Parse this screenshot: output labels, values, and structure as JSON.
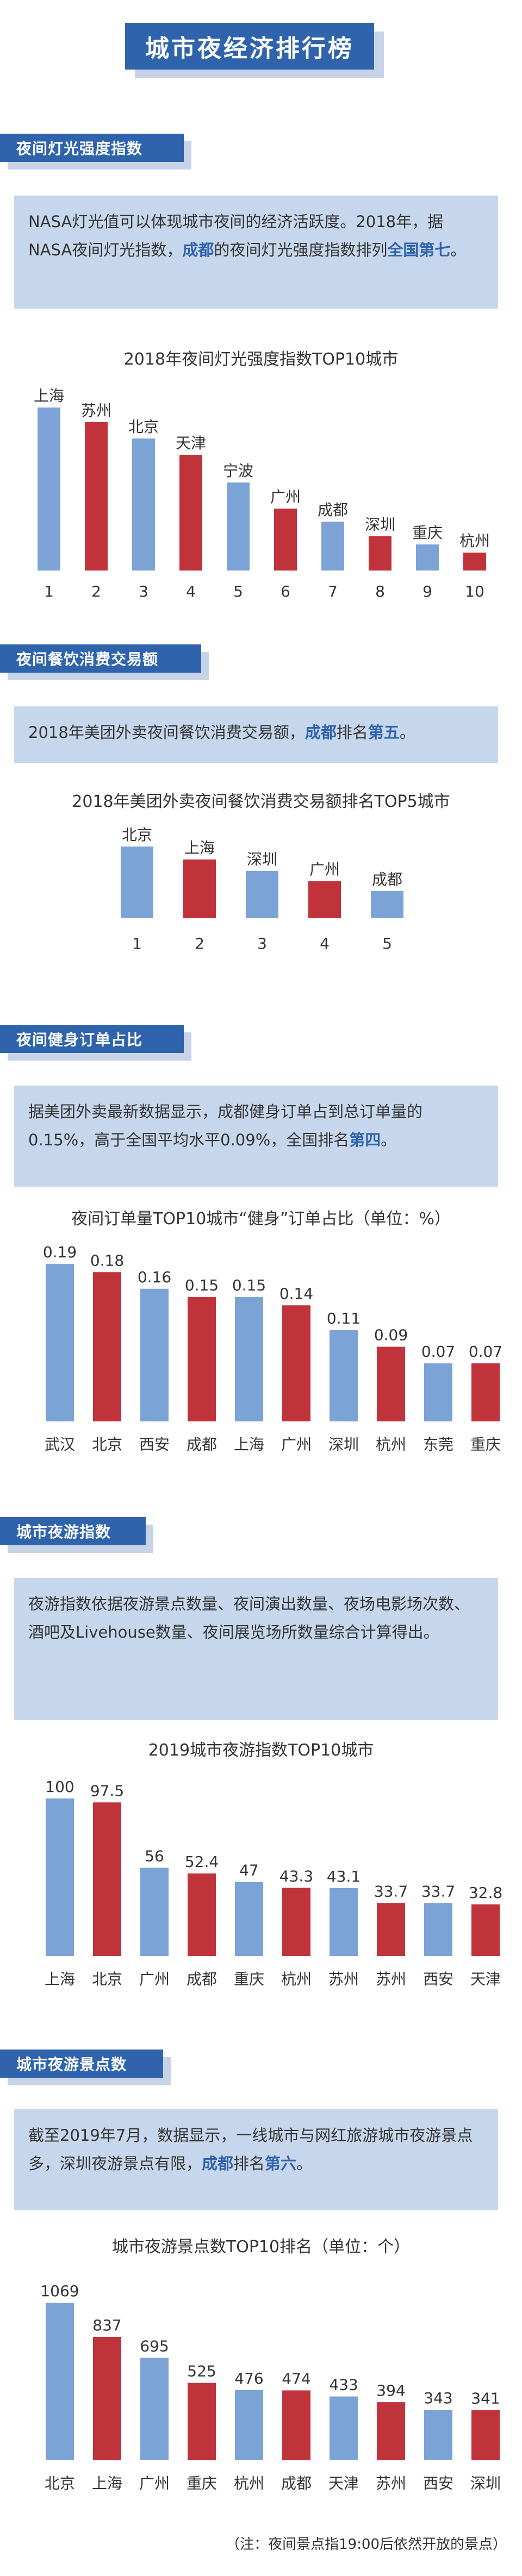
{
  "page_title": "城市夜经济排行榜",
  "colors": {
    "blue": "#7ba3d6",
    "red": "#c0333b",
    "header": "#2f64ac",
    "info_bg": "#c6d6ec"
  },
  "sections": [
    {
      "header": "夜间灯光强度指数",
      "info": {
        "pre": "NASA灯光值可以体现城市夜间的经济活跃度。2018年，据NASA夜间灯光指数，",
        "hl1": "成都",
        "mid": "的夜间灯光强度指数排列",
        "hl2": "全国第七",
        "post": "。"
      }
    },
    {
      "header": "夜间餐饮消费交易额",
      "info": {
        "pre": "2018年美团外卖夜间餐饮消费交易额，",
        "hl1": "成都",
        "mid": "排名",
        "hl2": "第五",
        "post": "。"
      }
    },
    {
      "header": "夜间健身订单占比",
      "info": {
        "pre": "据美团外卖最新数据显示，成都健身订单占到总订单量的0.15%，高于全国平均水平0.09%，全国排名",
        "hl1": "",
        "mid": "",
        "hl2": "第四",
        "post": "。"
      }
    },
    {
      "header": "城市夜游指数",
      "info": {
        "pre": "夜游指数依据夜游景点数量、夜间演出数量、夜场电影场次数、酒吧及Livehouse数量、夜间展览场所数量综合计算得出。",
        "hl1": "",
        "mid": "",
        "hl2": "",
        "post": ""
      }
    },
    {
      "header": "城市夜游景点数",
      "info": {
        "pre": "截至2019年7月，数据显示，一线城市与网红旅游城市夜游景点多，深圳夜游景点有限，",
        "hl1": "成都",
        "mid": "排名",
        "hl2": "第六",
        "post": "。"
      }
    }
  ],
  "chart_data": [
    {
      "type": "bar",
      "title": "2018年夜间灯光强度指数TOP10城市",
      "categories": [
        "1",
        "2",
        "3",
        "4",
        "5",
        "6",
        "7",
        "8",
        "9",
        "10"
      ],
      "bar_labels": [
        "上海",
        "苏州",
        "北京",
        "天津",
        "宁波",
        "广州",
        "成都",
        "深圳",
        "重庆",
        "杭州"
      ],
      "values": [
        10,
        9.1,
        8.1,
        7.1,
        5.4,
        3.8,
        3.0,
        2.1,
        1.6,
        1.1
      ],
      "colors": [
        "blue",
        "red",
        "blue",
        "red",
        "blue",
        "red",
        "blue",
        "red",
        "blue",
        "red"
      ],
      "ylim": [
        0,
        10
      ],
      "grid": false,
      "legend": "none"
    },
    {
      "type": "bar",
      "title": "2018年美团外卖夜间餐饮消费交易额排名TOP5城市",
      "categories": [
        "1",
        "2",
        "3",
        "4",
        "5"
      ],
      "bar_labels": [
        "北京",
        "上海",
        "深圳",
        "广州",
        "成都"
      ],
      "values": [
        5,
        4.1,
        3.3,
        2.6,
        1.9
      ],
      "colors": [
        "blue",
        "red",
        "blue",
        "red",
        "blue"
      ],
      "ylim": [
        0,
        5
      ],
      "grid": false,
      "legend": "none"
    },
    {
      "type": "bar",
      "title": "夜间订单量TOP10城市“健身”订单占比（单位：%）",
      "categories": [
        "武汉",
        "北京",
        "西安",
        "成都",
        "上海",
        "广州",
        "深圳",
        "杭州",
        "东莞",
        "重庆"
      ],
      "values": [
        0.19,
        0.18,
        0.16,
        0.15,
        0.15,
        0.14,
        0.11,
        0.09,
        0.07,
        0.07
      ],
      "value_labels": [
        "0.19",
        "0.18",
        "0.16",
        "0.15",
        "0.15",
        "0.14",
        "0.11",
        "0.09",
        "0.07",
        "0.07"
      ],
      "colors": [
        "blue",
        "red",
        "blue",
        "red",
        "blue",
        "red",
        "blue",
        "red",
        "blue",
        "red"
      ],
      "ylim": [
        0,
        0.19
      ],
      "grid": false,
      "legend": "none"
    },
    {
      "type": "bar",
      "title": "2019城市夜游指数TOP10城市",
      "categories": [
        "上海",
        "北京",
        "广州",
        "成都",
        "重庆",
        "杭州",
        "苏州",
        "苏州",
        "西安",
        "天津"
      ],
      "values": [
        100,
        97.5,
        56,
        52.4,
        47,
        43.3,
        43.1,
        33.7,
        33.7,
        32.8
      ],
      "value_labels": [
        "100",
        "97.5",
        "56",
        "52.4",
        "47",
        "43.3",
        "43.1",
        "33.7",
        "33.7",
        "32.8"
      ],
      "colors": [
        "blue",
        "red",
        "blue",
        "red",
        "blue",
        "red",
        "blue",
        "red",
        "blue",
        "red"
      ],
      "ylim": [
        0,
        100
      ],
      "grid": false,
      "legend": "none"
    },
    {
      "type": "bar",
      "title": "城市夜游景点数TOP10排名（单位：个）",
      "categories": [
        "北京",
        "上海",
        "广州",
        "重庆",
        "杭州",
        "成都",
        "天津",
        "苏州",
        "西安",
        "深圳"
      ],
      "values": [
        1069,
        837,
        695,
        525,
        476,
        474,
        433,
        394,
        343,
        341
      ],
      "value_labels": [
        "1069",
        "837",
        "695",
        "525",
        "476",
        "474",
        "433",
        "394",
        "343",
        "341"
      ],
      "colors": [
        "blue",
        "red",
        "blue",
        "red",
        "blue",
        "red",
        "blue",
        "red",
        "blue",
        "red"
      ],
      "ylim": [
        0,
        1069
      ],
      "grid": false,
      "legend": "none"
    }
  ],
  "footnote": "（注：夜间景点指19:00后依然开放的景点）"
}
